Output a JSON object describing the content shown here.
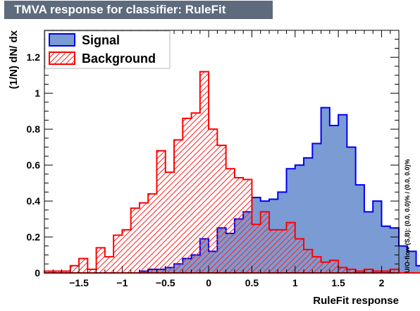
{
  "chart_data": {
    "type": "histogram",
    "title": "TMVA response for classifier: RuleFit",
    "xlabel": "RuleFit response",
    "ylabel": "(1/N) dN/ dx",
    "side_label": "U/O-flow (S,B): (0.0, 0.0)% / (0.0, 0.0)%",
    "xlim": [
      -1.9,
      2.2
    ],
    "ylim": [
      0,
      1.35
    ],
    "x_ticks": [
      -1.5,
      -1,
      -0.5,
      0,
      0.5,
      1,
      1.5,
      2
    ],
    "x_tick_labels": [
      "−1.5",
      "−1",
      "−0.5",
      "0",
      "0.5",
      "1",
      "1.5",
      "2"
    ],
    "y_ticks": [
      0,
      0.2,
      0.4,
      0.6,
      0.8,
      1,
      1.2
    ],
    "y_tick_labels": [
      "0",
      "0.2",
      "0.4",
      "0.6",
      "0.8",
      "1",
      "1.2"
    ],
    "bin_start": -1.9,
    "bin_width": 0.1,
    "series": [
      {
        "name": "Signal",
        "style": "filled",
        "fill": "#7b9bd4",
        "line": "#0000ee",
        "values": [
          0,
          0,
          0,
          0,
          0,
          0,
          0,
          0,
          0,
          0,
          0,
          0.01,
          0.02,
          0.02,
          0.03,
          0.05,
          0.08,
          0.1,
          0.19,
          0.12,
          0.25,
          0.22,
          0.3,
          0.34,
          0.42,
          0.4,
          0.41,
          0.45,
          0.58,
          0.6,
          0.64,
          0.72,
          0.92,
          0.82,
          0.88,
          0.7,
          0.49,
          0.34,
          0.4,
          0.26,
          0.25,
          0.15,
          0.12,
          0.04,
          0.03,
          0.02,
          0.01,
          0,
          0
        ]
      },
      {
        "name": "Background",
        "style": "hatched",
        "fill": "#ff2020",
        "line": "#ff0000",
        "values": [
          0.01,
          0.01,
          0.01,
          0.04,
          0.08,
          0.02,
          0.14,
          0.09,
          0.21,
          0.24,
          0.36,
          0.39,
          0.44,
          0.68,
          0.56,
          0.74,
          0.86,
          0.89,
          1.12,
          0.8,
          0.71,
          0.58,
          0.53,
          0.52,
          0.27,
          0.34,
          0.24,
          0.24,
          0.28,
          0.19,
          0.13,
          0.09,
          0.06,
          0.07,
          0.03,
          0.02,
          0.01,
          0.02,
          0.01,
          0.01,
          0.02,
          0,
          0,
          0,
          0,
          0,
          0,
          0,
          0
        ]
      }
    ],
    "legend": {
      "position": "top-left",
      "entries": [
        "Signal",
        "Background"
      ]
    },
    "grid": false
  }
}
